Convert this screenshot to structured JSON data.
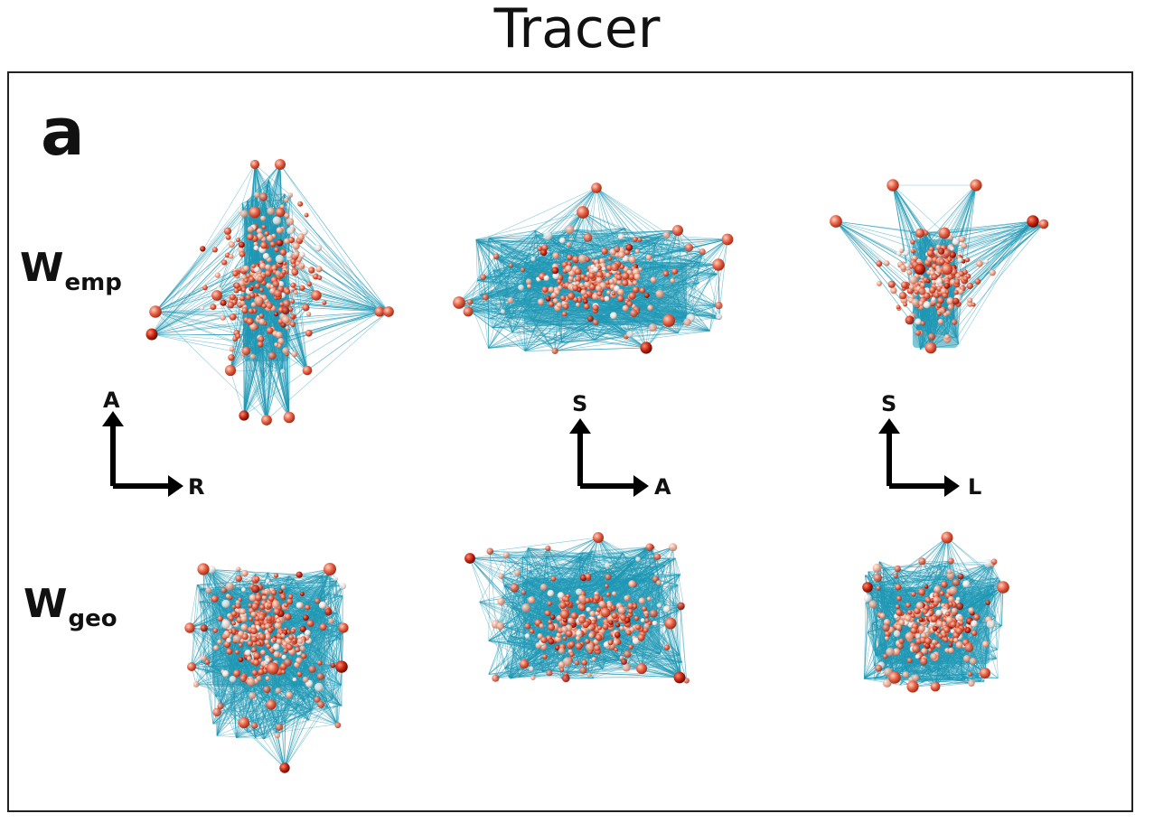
{
  "figure": {
    "title": "Tracer",
    "panel_label": "a",
    "rows": [
      {
        "main": "W",
        "sub": "emp"
      },
      {
        "main": "W",
        "sub": "geo"
      }
    ],
    "orientation_axes": [
      {
        "up": "A",
        "right": "R"
      },
      {
        "up": "S",
        "right": "A"
      },
      {
        "up": "S",
        "right": "L"
      }
    ]
  },
  "colors": {
    "edge": "#1e98b4",
    "node_dark": "#b4150a",
    "node_mid": "#e8553a",
    "node_light": "#f2b9a4",
    "node_pale": "#f3f3f3",
    "frame": "#222222"
  }
}
